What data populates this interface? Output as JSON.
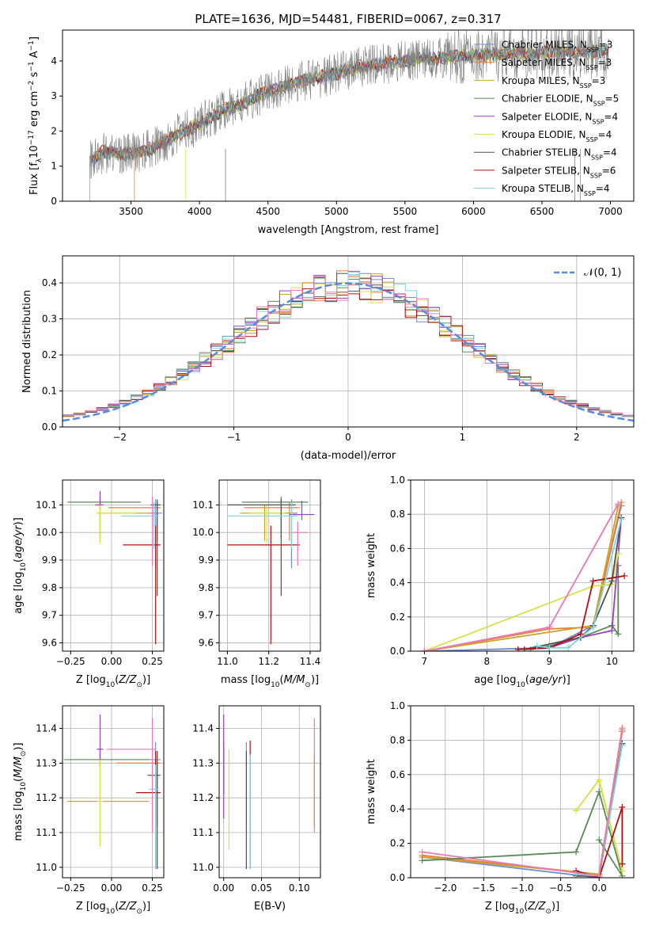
{
  "title": "PLATE=1636, MJD=54481, FIBERID=0067, z=0.317",
  "colors": {
    "Chabrier MILES": "#6f8fd0",
    "Salpeter MILES": "#ee7d33",
    "Kroupa MILES": "#c9a227",
    "Chabrier ELODIE": "#5a8a5a",
    "Salpeter ELODIE": "#9b3fc0",
    "Kroupa ELODIE": "#d8e048",
    "Chabrier STELIB": "#505050",
    "Salpeter STELIB": "#b01010",
    "Kroupa STELIB": "#7fd4dc",
    "data": "#808080",
    "gauss": "#5b8bd6",
    "pink": "#e878b8"
  },
  "chart_data": [
    {
      "id": "spectrum",
      "type": "line",
      "xlabel": "wavelength [Angstrom, rest frame]",
      "ylabel": "Flux [f_λ10^-17 erg cm^-2 s^-1 A^-1]",
      "xlim": [
        3000,
        7170
      ],
      "ylim": [
        0,
        4.88
      ],
      "xticks": [
        3500,
        4000,
        4500,
        5000,
        5500,
        6000,
        6500,
        7000
      ],
      "yticks": [
        0,
        1,
        2,
        3,
        4
      ],
      "legend_position": "upper right",
      "legend": [
        {
          "name": "Chabrier MILES",
          "nssp": "3"
        },
        {
          "name": "Salpeter MILES",
          "nssp": "3"
        },
        {
          "name": "Kroupa MILES",
          "nssp": "3"
        },
        {
          "name": "Chabrier ELODIE",
          "nssp": "5"
        },
        {
          "name": "Salpeter ELODIE",
          "nssp": "4"
        },
        {
          "name": "Kroupa ELODIE",
          "nssp": "4"
        },
        {
          "name": "Chabrier STELIB",
          "nssp": "4"
        },
        {
          "name": "Salpeter STELIB",
          "nssp": "6"
        },
        {
          "name": "Kroupa STELIB",
          "nssp": "4"
        }
      ],
      "continuum": {
        "x": [
          3200,
          3300,
          3450,
          3550,
          3650,
          3750,
          3850,
          3950,
          4050,
          4150,
          4300,
          4450,
          4600,
          4750,
          4900,
          5050,
          5200,
          5400,
          5600,
          5800,
          6000,
          6200,
          6400,
          6600,
          6800,
          7000
        ],
        "y": [
          1.15,
          1.4,
          1.35,
          1.4,
          1.5,
          1.7,
          1.95,
          2.1,
          2.3,
          2.55,
          2.75,
          3.05,
          3.25,
          3.45,
          3.55,
          3.7,
          3.85,
          3.95,
          4.05,
          4.1,
          4.15,
          4.2,
          4.2,
          4.25,
          4.25,
          4.3
        ]
      }
    },
    {
      "id": "residuals",
      "type": "histogram",
      "xlabel": "(data-model)/error",
      "ylabel": "Normed distribution",
      "xlim": [
        -2.5,
        2.5
      ],
      "ylim": [
        0,
        0.475
      ],
      "xticks": [
        -2,
        -1,
        0,
        1,
        2
      ],
      "yticks": [
        0.0,
        0.1,
        0.2,
        0.3,
        0.4
      ],
      "legend_position": "upper right",
      "legend_label": "𝒩(0, 1)",
      "bin_width": 0.1
    },
    {
      "id": "age_vs_Z",
      "type": "errorbar",
      "xlabel": "Z [log10(Z/Z⊙)]",
      "ylabel": "age [log10(age/yr)]",
      "xlim": [
        -0.3,
        0.32
      ],
      "ylim": [
        9.57,
        10.19
      ],
      "xticks": [
        -0.25,
        0.0,
        0.25
      ],
      "yticks": [
        9.6,
        9.7,
        9.8,
        9.9,
        10.0,
        10.1
      ],
      "points": [
        {
          "s": "Chabrier MILES",
          "x": 0.27,
          "y": 10.07,
          "xl": 0.05,
          "xh": 0.04,
          "yl": 0.2,
          "yh": 0.05
        },
        {
          "s": "Salpeter MILES",
          "x": 0.28,
          "y": 10.09,
          "xl": 0.3,
          "xh": 0.02,
          "yl": 0.12,
          "yh": 0.02
        },
        {
          "s": "Kroupa MILES",
          "x": -0.07,
          "y": 10.07,
          "xl": 0.02,
          "xh": 0.34,
          "yl": 0.1,
          "yh": 0.03
        },
        {
          "s": "Chabrier ELODIE",
          "x": -0.07,
          "y": 10.11,
          "xl": 0.2,
          "xh": 0.25,
          "yl": 0.13,
          "yh": 0.02
        },
        {
          "s": "Salpeter ELODIE",
          "x": -0.07,
          "y": 10.1,
          "xl": 0.03,
          "xh": 0.02,
          "yl": 0.02,
          "yh": 0.05
        },
        {
          "s": "Kroupa ELODIE",
          "x": -0.07,
          "y": 10.07,
          "xl": 0.02,
          "xh": 0.22,
          "yl": 0.11,
          "yh": 0.03
        },
        {
          "s": "Chabrier STELIB",
          "x": 0.28,
          "y": 10.1,
          "xl": 0.04,
          "xh": 0.02,
          "yl": 0.33,
          "yh": 0.02
        },
        {
          "s": "Salpeter STELIB",
          "x": 0.27,
          "y": 9.955,
          "xl": 0.2,
          "xh": 0.03,
          "yl": 0.36,
          "yh": 0.07
        },
        {
          "s": "Kroupa STELIB",
          "x": 0.26,
          "y": 10.06,
          "xl": 0.2,
          "xh": 0.03,
          "yl": 0.12,
          "yh": 0.05
        },
        {
          "s": "pink",
          "x": 0.25,
          "y": 10.07,
          "xl": 0.02,
          "xh": 0.02,
          "yl": 0.19,
          "yh": 0.06
        }
      ]
    },
    {
      "id": "age_vs_mass",
      "type": "errorbar",
      "xlabel": "mass [log10(M/M⊙)]",
      "ylabel": "",
      "xlim": [
        10.96,
        11.45
      ],
      "ylim": [
        9.57,
        10.19
      ],
      "xticks": [
        11.0,
        11.2,
        11.4
      ],
      "yticks": [
        9.6,
        9.7,
        9.8,
        9.9,
        10.0,
        10.1
      ],
      "points": [
        {
          "s": "Chabrier MILES",
          "x": 11.31,
          "y": 10.07,
          "xl": 0.03,
          "xh": 0.03,
          "yl": 0.2,
          "yh": 0.05
        },
        {
          "s": "Salpeter MILES",
          "x": 11.3,
          "y": 10.09,
          "xl": 0.22,
          "xh": 0.05,
          "yl": 0.12,
          "yh": 0.02
        },
        {
          "s": "Kroupa MILES",
          "x": 11.18,
          "y": 10.07,
          "xl": 0.12,
          "xh": 0.15,
          "yl": 0.1,
          "yh": 0.03
        },
        {
          "s": "Chabrier ELODIE",
          "x": 11.26,
          "y": 10.11,
          "xl": 0.19,
          "xh": 0.13,
          "yl": 0.13,
          "yh": 0.02
        },
        {
          "s": "Salpeter ELODIE",
          "x": 11.36,
          "y": 10.065,
          "xl": 0.06,
          "xh": 0.06,
          "yl": 0.02,
          "yh": 0.05
        },
        {
          "s": "Kroupa ELODIE",
          "x": 11.19,
          "y": 10.07,
          "xl": 0.08,
          "xh": 0.09,
          "yl": 0.11,
          "yh": 0.03
        },
        {
          "s": "Chabrier STELIB",
          "x": 11.26,
          "y": 10.1,
          "xl": 0.26,
          "xh": 0.07,
          "yl": 0.33,
          "yh": 0.02
        },
        {
          "s": "Salpeter STELIB",
          "x": 11.21,
          "y": 9.955,
          "xl": 0.21,
          "xh": 0.14,
          "yl": 0.36,
          "yh": 0.07
        },
        {
          "s": "Kroupa STELIB",
          "x": 11.31,
          "y": 10.06,
          "xl": 0.31,
          "xh": 0.03,
          "yl": 0.12,
          "yh": 0.05
        },
        {
          "s": "pink",
          "x": 11.34,
          "y": 10.0,
          "xl": 0.03,
          "xh": 0.05,
          "yl": 0.12,
          "yh": 0.04
        }
      ]
    },
    {
      "id": "weight_vs_age",
      "type": "line",
      "xlabel": "age [log10(age/yr)]",
      "ylabel": "mass weight",
      "xlim": [
        6.78,
        10.35
      ],
      "ylim": [
        0,
        1.0
      ],
      "xticks": [
        7,
        8,
        9,
        10
      ],
      "yticks": [
        0.0,
        0.2,
        0.4,
        0.6,
        0.8,
        1.0
      ],
      "series": [
        {
          "s": "Chabrier MILES",
          "x": [
            7.0,
            9.0,
            9.7,
            10.15
          ],
          "y": [
            0.0,
            0.02,
            0.15,
            0.85
          ]
        },
        {
          "s": "Salpeter MILES",
          "x": [
            7.0,
            9.0,
            9.7,
            10.15
          ],
          "y": [
            0.0,
            0.13,
            0.14,
            0.87
          ]
        },
        {
          "s": "Kroupa MILES",
          "x": [
            7.0,
            9.7,
            10.1
          ],
          "y": [
            0.0,
            0.15,
            0.85
          ]
        },
        {
          "s": "Chabrier ELODIE",
          "x": [
            8.7,
            9.0,
            9.5,
            10.0,
            10.1,
            10.1
          ],
          "y": [
            0.01,
            0.03,
            0.08,
            0.15,
            0.1,
            0.5
          ]
        },
        {
          "s": "Salpeter ELODIE",
          "x": [
            8.6,
            9.0,
            9.5,
            10.0,
            10.15
          ],
          "y": [
            0.01,
            0.02,
            0.08,
            0.12,
            0.78
          ]
        },
        {
          "s": "Kroupa ELODIE",
          "x": [
            7.0,
            9.7,
            10.0,
            10.1
          ],
          "y": [
            0.0,
            0.38,
            0.39,
            0.57
          ]
        },
        {
          "s": "Chabrier STELIB",
          "x": [
            8.6,
            9.5,
            9.7,
            10.0,
            10.15
          ],
          "y": [
            0.01,
            0.08,
            0.15,
            0.41,
            0.78
          ]
        },
        {
          "s": "Salpeter STELIB",
          "x": [
            8.5,
            9.0,
            9.5,
            9.7,
            10.2
          ],
          "y": [
            0.01,
            0.02,
            0.1,
            0.41,
            0.44
          ]
        },
        {
          "s": "Kroupa STELIB",
          "x": [
            8.8,
            9.0,
            9.3,
            9.7,
            10.15
          ],
          "y": [
            0.03,
            0.02,
            0.02,
            0.14,
            0.77
          ]
        },
        {
          "s": "pink",
          "x": [
            7.0,
            9.0,
            10.1
          ],
          "y": [
            0.0,
            0.14,
            0.86
          ]
        }
      ]
    },
    {
      "id": "mass_vs_Z",
      "type": "errorbar",
      "xlabel": "Z [log10(Z/Z⊙)]",
      "ylabel": "mass [log10(M/M⊙)]",
      "xlim": [
        -0.3,
        0.32
      ],
      "ylim": [
        10.97,
        11.465
      ],
      "xticks": [
        -0.25,
        0.0,
        0.25
      ],
      "yticks": [
        11.0,
        11.1,
        11.2,
        11.3,
        11.4
      ],
      "points": [
        {
          "s": "Chabrier MILES",
          "x": 0.27,
          "y": 11.31,
          "xl": 0.06,
          "xh": 0.03,
          "yl": 0.18,
          "yh": 0.05
        },
        {
          "s": "Salpeter MILES",
          "x": 0.28,
          "y": 11.3,
          "xl": 0.25,
          "xh": 0.02,
          "yl": 0.18,
          "yh": 0.03
        },
        {
          "s": "Kroupa MILES",
          "x": -0.07,
          "y": 11.19,
          "xl": 0.2,
          "xh": 0.3,
          "yl": 0.13,
          "yh": 0.12
        },
        {
          "s": "Chabrier ELODIE",
          "x": -0.07,
          "y": 11.31,
          "xl": 0.22,
          "xh": 0.3,
          "yl": 0.02,
          "yh": 0.02
        },
        {
          "s": "Salpeter ELODIE",
          "x": -0.07,
          "y": 11.34,
          "xl": 0.02,
          "xh": 0.02,
          "yl": 0.03,
          "yh": 0.1
        },
        {
          "s": "Kroupa ELODIE",
          "x": -0.07,
          "y": 11.19,
          "xl": 0.02,
          "xh": 0.02,
          "yl": 0.13,
          "yh": 0.12
        },
        {
          "s": "Chabrier STELIB",
          "x": 0.28,
          "y": 11.265,
          "xl": 0.06,
          "xh": 0.02,
          "yl": 0.27,
          "yh": 0.07
        },
        {
          "s": "Salpeter STELIB",
          "x": 0.27,
          "y": 11.215,
          "xl": 0.12,
          "xh": 0.03,
          "yl": 0.22,
          "yh": 0.12
        },
        {
          "s": "Kroupa STELIB",
          "x": 0.27,
          "y": 11.225,
          "xl": 0.04,
          "xh": 0.02,
          "yl": 0.23,
          "yh": 0.07
        },
        {
          "s": "pink",
          "x": 0.25,
          "y": 11.34,
          "xl": 0.28,
          "xh": 0.02,
          "yl": 0.24,
          "yh": 0.09
        }
      ]
    },
    {
      "id": "mass_vs_EBV",
      "type": "errorbar",
      "xlabel": "E(B-V)",
      "ylabel": "",
      "xlim": [
        -0.006,
        0.128
      ],
      "ylim": [
        10.97,
        11.465
      ],
      "xticks": [
        0.0,
        0.05,
        0.1
      ],
      "yticks": [
        11.0,
        11.1,
        11.2,
        11.3,
        11.4
      ],
      "points": [
        {
          "s": "Chabrier MILES",
          "x": 0.03,
          "y": 11.31,
          "xl": 0,
          "xh": 0,
          "yl": 0.18,
          "yh": 0.05
        },
        {
          "s": "Salpeter MILES",
          "x": 0.12,
          "y": 11.3,
          "xl": 0,
          "xh": 0,
          "yl": 0.18,
          "yh": 0.03
        },
        {
          "s": "Kroupa MILES",
          "x": 0.12,
          "y": 11.22,
          "xl": 0,
          "xh": 0,
          "yl": 0.1,
          "yh": 0.1
        },
        {
          "s": "Chabrier ELODIE",
          "x": 0.0,
          "y": 11.31,
          "xl": 0,
          "xh": 0,
          "yl": 0.1,
          "yh": 0.05
        },
        {
          "s": "Salpeter ELODIE",
          "x": 0.0,
          "y": 11.34,
          "xl": 0,
          "xh": 0,
          "yl": 0.2,
          "yh": 0.1
        },
        {
          "s": "Kroupa ELODIE",
          "x": 0.007,
          "y": 11.2,
          "xl": 0,
          "xh": 0,
          "yl": 0.15,
          "yh": 0.14
        },
        {
          "s": "Chabrier STELIB",
          "x": 0.03,
          "y": 11.265,
          "xl": 0,
          "xh": 0,
          "yl": 0.27,
          "yh": 0.07
        },
        {
          "s": "Salpeter STELIB",
          "x": 0.035,
          "y": 11.215,
          "xl": 0,
          "xh": 0,
          "yl": 0.22,
          "yh": 0.15
        },
        {
          "s": "Kroupa STELIB",
          "x": 0.035,
          "y": 11.225,
          "xl": 0,
          "xh": 0,
          "yl": 0.23,
          "yh": 0.1
        },
        {
          "s": "pink",
          "x": 0.12,
          "y": 11.34,
          "xl": 0,
          "xh": 0,
          "yl": 0.24,
          "yh": 0.09
        }
      ]
    },
    {
      "id": "weight_vs_Z",
      "type": "line",
      "xlabel": "Z [log10(Z/Z⊙)]",
      "ylabel": "mass weight",
      "xlim": [
        -2.45,
        0.45
      ],
      "ylim": [
        0,
        1.0
      ],
      "xticks": [
        -2.0,
        -1.5,
        -1.0,
        -0.5,
        0.0
      ],
      "yticks": [
        0.0,
        0.2,
        0.4,
        0.6,
        0.8,
        1.0
      ],
      "series": [
        {
          "s": "Chabrier MILES",
          "x": [
            -2.3,
            0.0,
            0.3
          ],
          "y": [
            0.12,
            0.0,
            0.85
          ]
        },
        {
          "s": "Salpeter MILES",
          "x": [
            -2.3,
            0.0,
            0.3
          ],
          "y": [
            0.13,
            0.02,
            0.87
          ]
        },
        {
          "s": "Kroupa MILES",
          "x": [
            -2.3,
            0.0,
            0.3
          ],
          "y": [
            0.12,
            0.02,
            0.85
          ]
        },
        {
          "s": "Chabrier ELODIE",
          "x": [
            -2.3,
            -0.3,
            0.0,
            0.3,
            0.0
          ],
          "y": [
            0.1,
            0.15,
            0.5,
            0.01,
            0.22
          ]
        },
        {
          "s": "Salpeter ELODIE",
          "x": [
            -0.3,
            0.0,
            0.3
          ],
          "y": [
            0.02,
            0.0,
            0.78
          ]
        },
        {
          "s": "Kroupa ELODIE",
          "x": [
            -0.3,
            0.0,
            0.3,
            0.0
          ],
          "y": [
            0.39,
            0.57,
            0.04,
            0.56
          ]
        },
        {
          "s": "Chabrier STELIB",
          "x": [
            -0.3,
            0.0,
            0.3
          ],
          "y": [
            0.01,
            0.01,
            0.78
          ]
        },
        {
          "s": "Salpeter STELIB",
          "x": [
            -0.3,
            0.0,
            0.3,
            0.3
          ],
          "y": [
            0.04,
            0.0,
            0.41,
            0.08
          ]
        },
        {
          "s": "Kroupa STELIB",
          "x": [
            -0.3,
            0.0,
            0.3
          ],
          "y": [
            0.02,
            0.01,
            0.77
          ]
        },
        {
          "s": "pink",
          "x": [
            -2.3,
            0.0,
            0.3
          ],
          "y": [
            0.15,
            0.01,
            0.86
          ]
        }
      ]
    }
  ]
}
